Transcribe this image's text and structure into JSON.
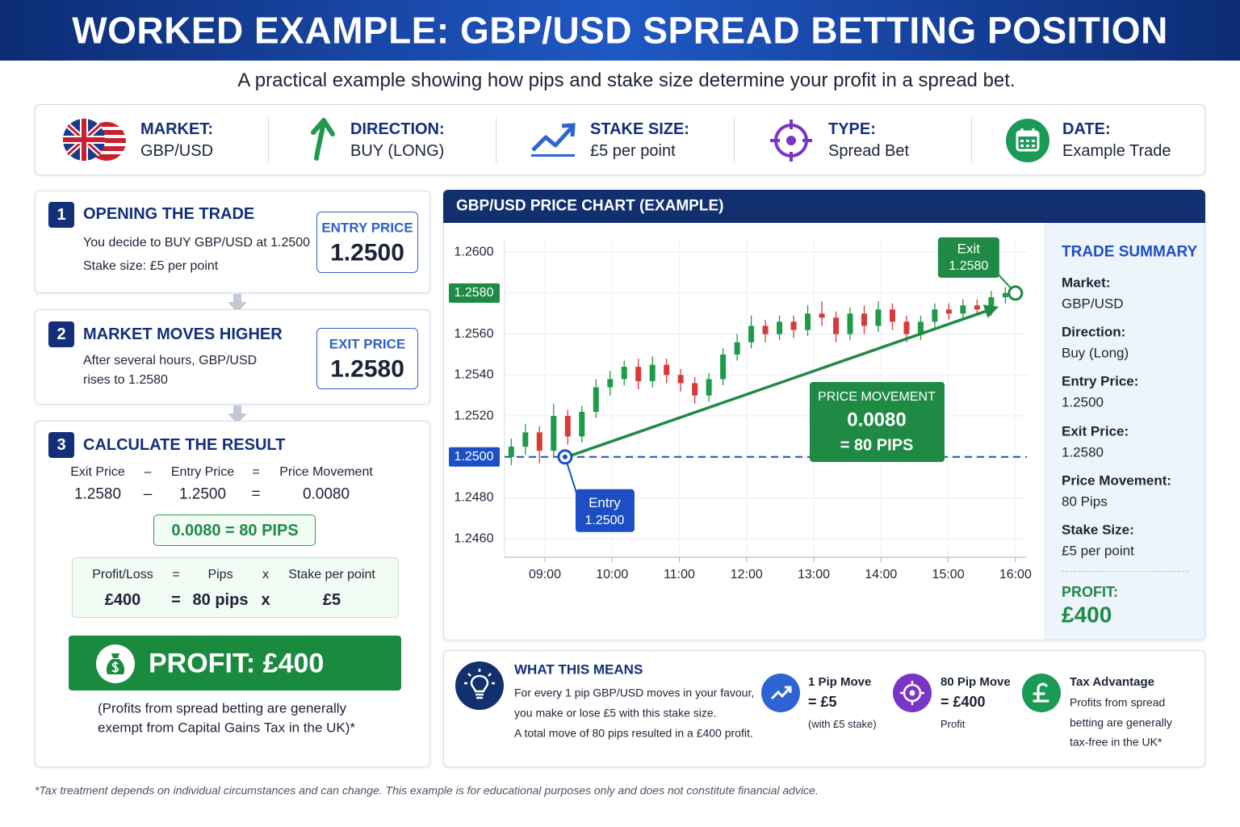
{
  "header": {
    "title": "WORKED EXAMPLE: GBP/USD SPREAD BETTING POSITION",
    "subtitle": "A practical example showing how pips and stake size determine your profit in a spread bet."
  },
  "info_bar": [
    {
      "label": "MARKET:",
      "value": "GBP/USD"
    },
    {
      "label": "DIRECTION:",
      "value": "BUY (LONG)"
    },
    {
      "label": "STAKE SIZE:",
      "value": "£5 per point"
    },
    {
      "label": "TYPE:",
      "value": "Spread Bet"
    },
    {
      "label": "DATE:",
      "value": "Example Trade"
    }
  ],
  "steps": [
    {
      "number": "1",
      "title": "OPENING THE TRADE",
      "lines": [
        "You decide to BUY GBP/USD at 1.2500",
        "Stake size: £5 per point"
      ],
      "badge_label": "ENTRY PRICE",
      "badge_value": "1.2500"
    },
    {
      "number": "2",
      "title": "MARKET MOVES HIGHER",
      "lines": [
        "After several hours, GBP/USD",
        "rises to 1.2580"
      ],
      "badge_label": "EXIT PRICE",
      "badge_value": "1.2580"
    },
    {
      "number": "3",
      "title": "CALCULATE THE RESULT",
      "equation": [
        [
          "Exit Price",
          "–",
          "Entry Price",
          "=",
          "Price Movement"
        ],
        [
          "1.2580",
          "–",
          "1.2500",
          "=",
          "0.0080"
        ]
      ],
      "pips_result": "0.0080 = 80 PIPS",
      "profit_equation": [
        [
          "Profit/Loss",
          "=",
          "Pips",
          "x",
          "Stake per point"
        ],
        [
          "£400",
          "=",
          "80 pips",
          "x",
          "£5"
        ]
      ],
      "profit_banner": "PROFIT: £400",
      "note": [
        "(Profits from spread betting are generally",
        "exempt from Capital Gains Tax in the UK)*"
      ]
    }
  ],
  "chart_data": {
    "type": "candlestick",
    "title": "GBP/USD PRICE CHART (EXAMPLE)",
    "x": [
      8.5,
      8.71,
      8.92,
      9.13,
      9.34,
      9.55,
      9.76,
      9.97,
      10.18,
      10.39,
      10.6,
      10.81,
      11.02,
      11.23,
      11.44,
      11.65,
      11.86,
      12.07,
      12.28,
      12.49,
      12.7,
      12.91,
      13.12,
      13.33,
      13.54,
      13.75,
      13.96,
      14.17,
      14.38,
      14.59,
      14.8,
      15.01,
      15.22,
      15.43,
      15.64,
      15.85
    ],
    "open": [
      1.25,
      1.2505,
      1.2512,
      1.2503,
      1.252,
      1.251,
      1.2522,
      1.2534,
      1.2538,
      1.2544,
      1.2537,
      1.2545,
      1.254,
      1.2536,
      1.253,
      1.2538,
      1.255,
      1.2556,
      1.2564,
      1.256,
      1.2566,
      1.2562,
      1.257,
      1.2568,
      1.256,
      1.257,
      1.2564,
      1.2572,
      1.2566,
      1.256,
      1.2566,
      1.2572,
      1.257,
      1.2574,
      1.2572,
      1.2578
    ],
    "high": [
      1.2509,
      1.2516,
      1.2515,
      1.2526,
      1.2523,
      1.2525,
      1.2538,
      1.2542,
      1.2547,
      1.2548,
      1.2549,
      1.2548,
      1.2543,
      1.2539,
      1.2541,
      1.2553,
      1.256,
      1.2569,
      1.2567,
      1.2569,
      1.2569,
      1.2574,
      1.2576,
      1.2571,
      1.2573,
      1.2574,
      1.2576,
      1.2575,
      1.2569,
      1.2569,
      1.2575,
      1.2575,
      1.2577,
      1.2577,
      1.2581,
      1.2583
    ],
    "low": [
      1.2496,
      1.2501,
      1.2497,
      1.25,
      1.2506,
      1.2507,
      1.2519,
      1.253,
      1.2535,
      1.2533,
      1.2534,
      1.2536,
      1.2532,
      1.2526,
      1.2527,
      1.2535,
      1.2547,
      1.2553,
      1.2556,
      1.2557,
      1.2558,
      1.2559,
      1.2564,
      1.2556,
      1.2557,
      1.256,
      1.2561,
      1.2562,
      1.2556,
      1.2557,
      1.2563,
      1.2567,
      1.2567,
      1.2569,
      1.2569,
      1.2575
    ],
    "close": [
      1.2505,
      1.2512,
      1.2503,
      1.252,
      1.251,
      1.2522,
      1.2534,
      1.2538,
      1.2544,
      1.2537,
      1.2545,
      1.254,
      1.2536,
      1.253,
      1.2538,
      1.255,
      1.2556,
      1.2564,
      1.256,
      1.2566,
      1.2562,
      1.257,
      1.2568,
      1.256,
      1.257,
      1.2564,
      1.2572,
      1.2566,
      1.256,
      1.2566,
      1.2572,
      1.257,
      1.2574,
      1.2572,
      1.2578,
      1.258
    ],
    "up_color": "#1f9a4b",
    "down_color": "#d83a3a",
    "xlim": [
      8.4,
      16.17
    ],
    "ylim": [
      1.2451,
      1.2606
    ],
    "xticks": [
      {
        "value": 9,
        "label": "09:00"
      },
      {
        "value": 10,
        "label": "10:00"
      },
      {
        "value": 11,
        "label": "11:00"
      },
      {
        "value": 12,
        "label": "12:00"
      },
      {
        "value": 13,
        "label": "13:00"
      },
      {
        "value": 14,
        "label": "14:00"
      },
      {
        "value": 15,
        "label": "15:00"
      },
      {
        "value": 16,
        "label": "16:00"
      }
    ],
    "yticks": [
      {
        "value": 1.246,
        "label": "1.2460"
      },
      {
        "value": 1.248,
        "label": "1.2480"
      },
      {
        "value": 1.25,
        "label": "1.2500"
      },
      {
        "value": 1.252,
        "label": "1.2520"
      },
      {
        "value": 1.254,
        "label": "1.2540"
      },
      {
        "value": 1.256,
        "label": "1.2560"
      },
      {
        "value": 1.258,
        "label": "1.2580"
      },
      {
        "value": 1.26,
        "label": "1.2600"
      }
    ],
    "grid": true,
    "entry": {
      "x": 9.3,
      "y": 1.25,
      "label": "Entry",
      "value_label": "1.2500",
      "color": "#1d4fc4"
    },
    "exit": {
      "x": 16,
      "y": 1.258,
      "label": "Exit",
      "value_label": "1.2580",
      "color": "#1f8a44"
    },
    "movement": {
      "title": "PRICE MOVEMENT",
      "value": "0.0080",
      "pips": "= 80 PIPS"
    }
  },
  "trade_summary": {
    "title": "TRADE SUMMARY",
    "items": [
      {
        "label": "Market:",
        "value": "GBP/USD"
      },
      {
        "label": "Direction:",
        "value": "Buy (Long)"
      },
      {
        "label": "Entry Price:",
        "value": "1.2500"
      },
      {
        "label": "Exit Price:",
        "value": "1.2580"
      },
      {
        "label": "Price Movement:",
        "value": "80 Pips"
      },
      {
        "label": "Stake Size:",
        "value": "£5 per point"
      }
    ],
    "profit_label": "PROFIT:",
    "profit_value": "£400"
  },
  "what_this_means": {
    "title": "WHAT THIS MEANS",
    "lines": [
      "For every 1 pip GBP/USD moves in your favour,",
      "you make or lose £5 with this stake size.",
      "A total move of 80 pips resulted in a £400 profit."
    ],
    "facts": [
      {
        "title": "1 Pip Move",
        "value": "= £5",
        "note": "(with £5 stake)"
      },
      {
        "title": "80 Pip Move",
        "value": "= £400",
        "note": "Profit"
      },
      {
        "title": "Tax Advantage",
        "lines": [
          "Profits from spread",
          "betting are generally",
          "tax-free in the UK*"
        ]
      }
    ]
  },
  "footnote": "*Tax treatment depends on individual circumstances and can change. This example is for educational purposes only and does not constitute financial advice."
}
